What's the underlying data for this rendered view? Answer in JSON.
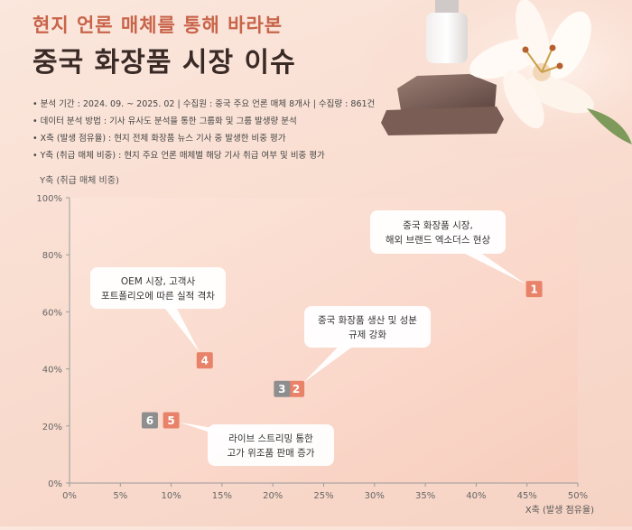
{
  "header": {
    "subtitle": "현지 언론 매체를 통해 바라본",
    "title": "중국 화장품 시장 이슈"
  },
  "info": {
    "line1": "• 분석 기간 : 2024. 09. ~ 2025. 02  |  수집원 : 중국 주요 언론 매체 8개사  |  수집량 : 861건",
    "line2": "• 데이터 분석 방법 : 기사 유사도 분석을 통한 그룹화 및 그룹 발생량 분석",
    "line3": "• X축 (발생 점유율) : 현지 전체 화장품 뉴스 기사 중 발생한 비중 평가",
    "line4": "• Y축 (취급 매체 비중) : 현지 주요 언론 매체별 해당 기사 취급 여부 및 비중 평가"
  },
  "colors": {
    "accent": "#e8836a",
    "gray_marker": "#8e8e8e",
    "title_accent": "#c8644a"
  },
  "chart_data": {
    "type": "scatter",
    "ylabel": "Y축 (취급 매체 비중)",
    "xlabel": "X축 (발생 점유율)",
    "xlim": [
      0,
      50
    ],
    "ylim": [
      0,
      100
    ],
    "xticks": [
      "0%",
      "5%",
      "10%",
      "15%",
      "20%",
      "25%",
      "30%",
      "35%",
      "40%",
      "45%",
      "50%"
    ],
    "yticks": [
      "0%",
      "20%",
      "40%",
      "60%",
      "80%",
      "100%"
    ],
    "grid": false,
    "points": [
      {
        "id": "1",
        "x": 45.7,
        "y": 68,
        "color": "#e8836a"
      },
      {
        "id": "2",
        "x": 22.3,
        "y": 33,
        "color": "#e8836a"
      },
      {
        "id": "3",
        "x": 20.9,
        "y": 33,
        "color": "#8e8e8e"
      },
      {
        "id": "4",
        "x": 13.3,
        "y": 43,
        "color": "#e8836a"
      },
      {
        "id": "5",
        "x": 10.0,
        "y": 22,
        "color": "#e8836a"
      },
      {
        "id": "6",
        "x": 7.9,
        "y": 22,
        "color": "#8e8e8e"
      }
    ],
    "annotations": [
      {
        "target": "1",
        "lines": [
          "중국 화장품 시장,",
          "해외 브랜드 엑소더스 현상"
        ]
      },
      {
        "target": "4",
        "lines": [
          "OEM 시장, 고객사",
          "포트폴리오에 따른 실적 격차"
        ]
      },
      {
        "target": "2",
        "lines": [
          "중국 화장품 생산 및 성분",
          "규제 강화"
        ]
      },
      {
        "target": "5",
        "lines": [
          "라이브 스트리밍 통한",
          "고가 위조품 판매 증가"
        ]
      }
    ]
  }
}
